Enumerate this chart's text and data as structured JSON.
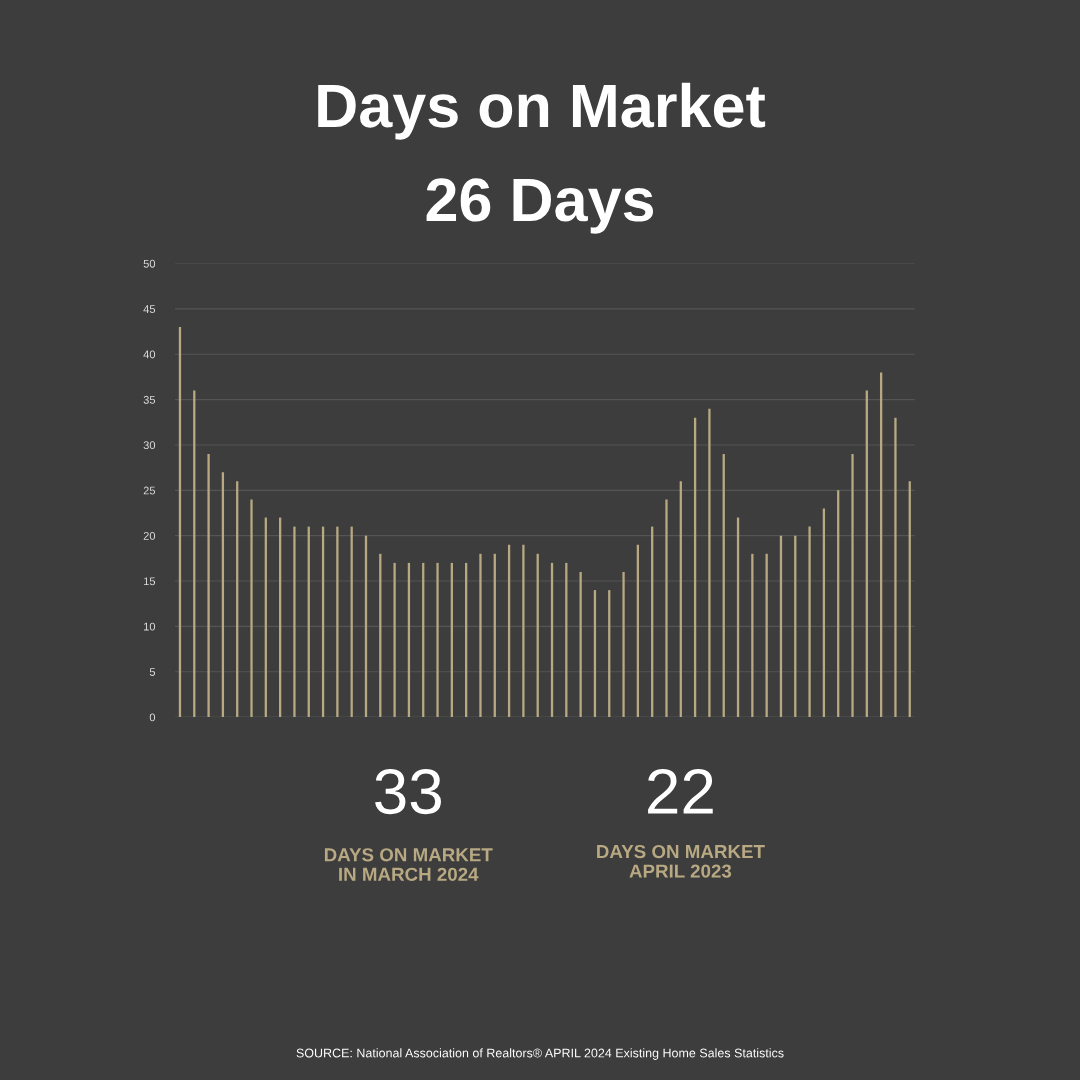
{
  "chart_data": {
    "type": "bar",
    "title": "Days on Market",
    "subtitle": "26 Days",
    "categories": [
      null,
      null,
      null,
      null,
      null,
      null,
      null,
      null,
      null,
      null,
      null,
      null,
      null,
      null,
      null,
      null,
      null,
      null,
      null,
      null,
      null,
      null,
      null,
      null,
      null,
      null,
      null,
      null,
      null,
      null,
      null,
      null,
      null,
      null,
      null,
      null,
      null,
      null,
      null,
      null,
      null,
      null,
      null,
      null,
      null,
      null,
      null,
      null,
      null,
      null,
      null,
      null
    ],
    "values": [
      43,
      36,
      29,
      27,
      26,
      24,
      22,
      22,
      21,
      21,
      21,
      21,
      21,
      20,
      18,
      17,
      17,
      17,
      17,
      17,
      17,
      18,
      18,
      19,
      19,
      18,
      17,
      17,
      16,
      14,
      14,
      16,
      19,
      21,
      24,
      26,
      33,
      34,
      29,
      22,
      18,
      18,
      20,
      20,
      21,
      23,
      25,
      29,
      36,
      38,
      33,
      26
    ],
    "color": "#b8a983",
    "ylim": [
      0,
      50
    ],
    "yticks": [
      0,
      5,
      10,
      15,
      20,
      25,
      30,
      35,
      40,
      45,
      50
    ],
    "grid": "y",
    "annotations": [
      "33",
      "DAYS ON MARKET\nIN MARCH 2024",
      "22",
      "DAYS ON MARKET\nAPRIL 2023",
      "SOURCE: National Association of Realtors® APRIL 2024 Existing Home Sales Statistics"
    ]
  }
}
